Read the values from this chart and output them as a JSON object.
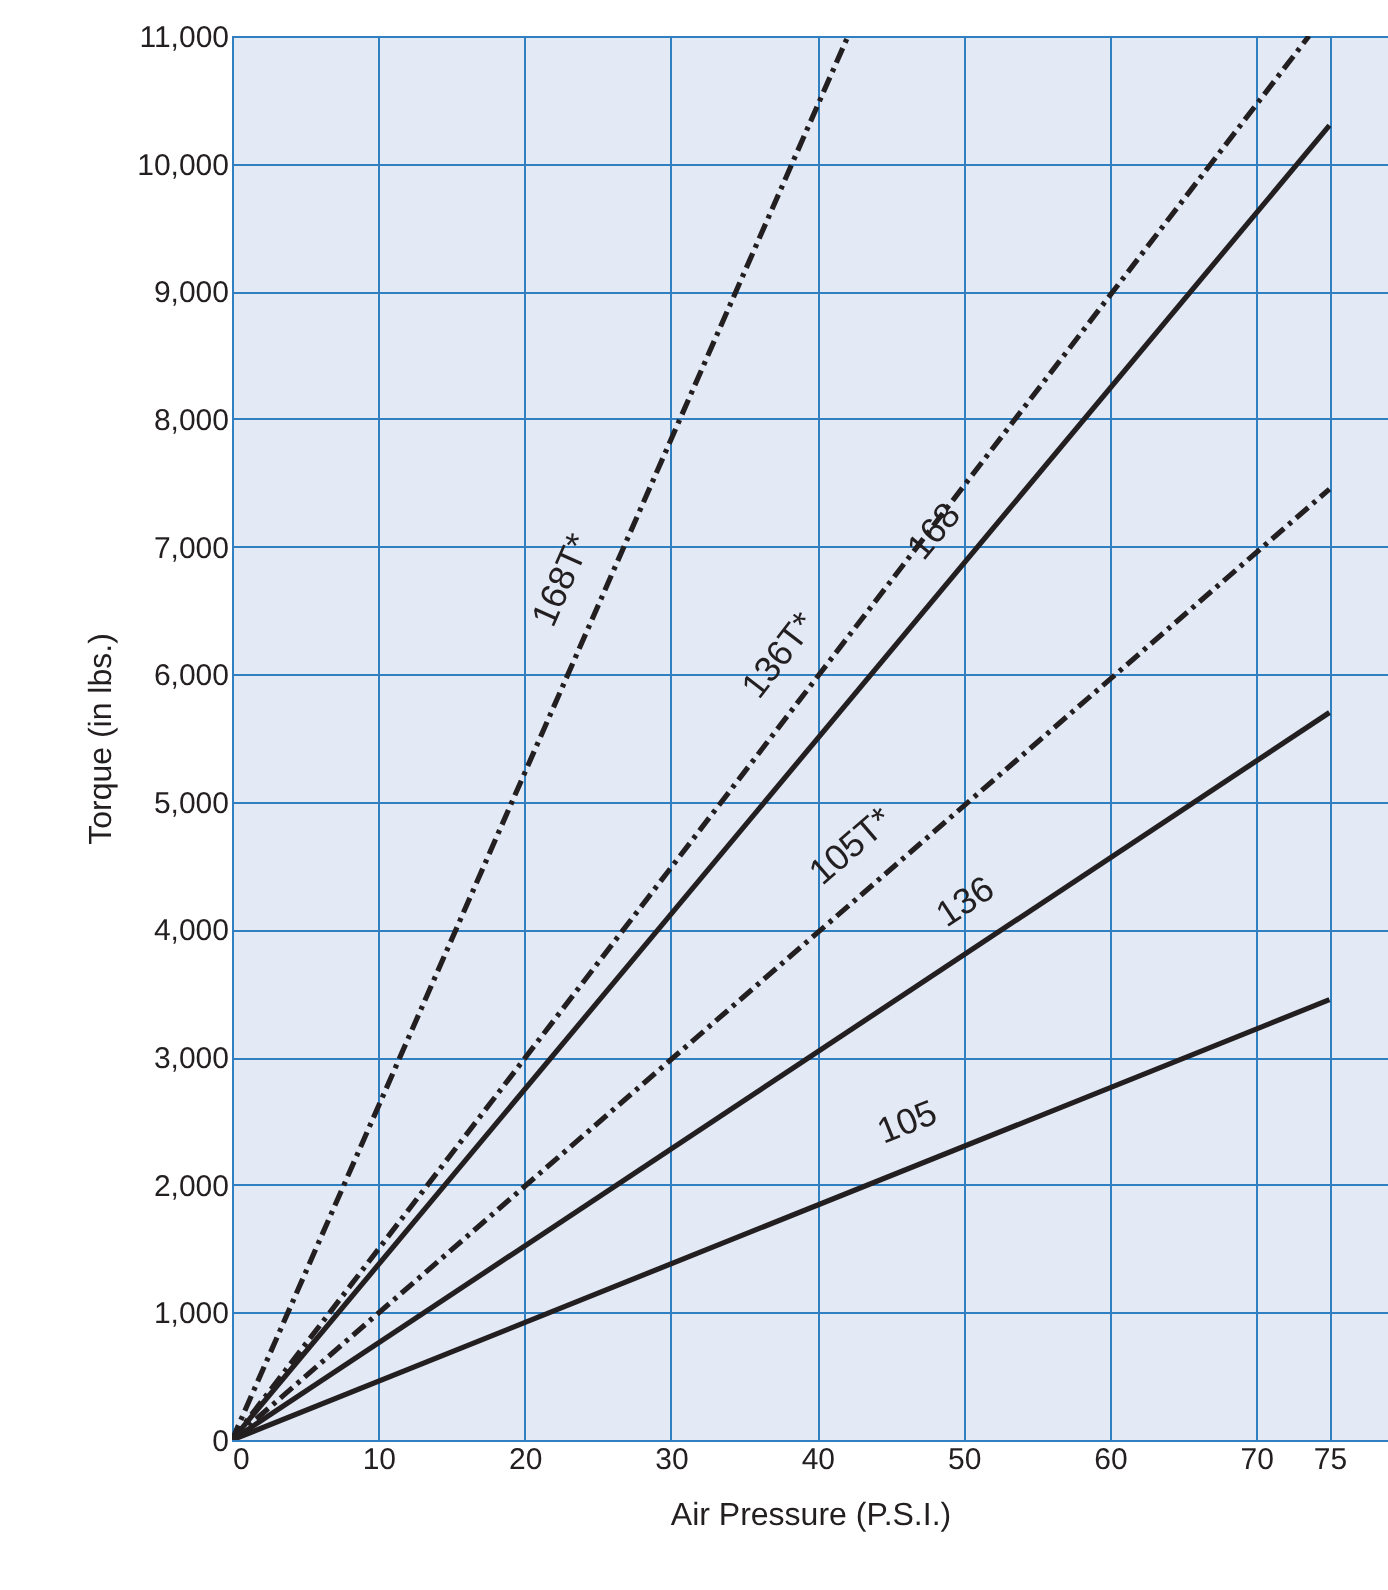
{
  "chart_data": {
    "type": "line",
    "xlabel": "Air Pressure (P.S.I.)",
    "ylabel": "Torque (in lbs.)",
    "xlim": [
      0,
      79
    ],
    "xticks": [
      0,
      10,
      20,
      30,
      40,
      50,
      60,
      70,
      75
    ],
    "ylim": [
      0,
      11000
    ],
    "yticks": [
      0,
      {
        "value": 1000,
        "label": "1,000"
      },
      {
        "value": 2000,
        "label": "2,000"
      },
      {
        "value": 3000,
        "label": "3,000"
      },
      {
        "value": 4000,
        "label": "4,000"
      },
      {
        "value": 5000,
        "label": "5,000"
      },
      {
        "value": 6000,
        "label": "6,000"
      },
      {
        "value": 7000,
        "label": "7,000"
      },
      {
        "value": 8000,
        "label": "8,000"
      },
      {
        "value": 9000,
        "label": "9,000"
      },
      {
        "value": 10000,
        "label": "10,000"
      },
      {
        "value": 11000,
        "label": "11,000"
      }
    ],
    "grid": true,
    "marker": "none",
    "series": [
      {
        "name": "168T*",
        "color": "#231f20",
        "line_style": "dashed",
        "x": [
          0,
          42.1
        ],
        "values": [
          0,
          11000
        ]
      },
      {
        "name": "136T*",
        "color": "#231f20",
        "line_style": "dashed",
        "x": [
          0,
          73.6
        ],
        "values": [
          0,
          11000
        ]
      },
      {
        "name": "168",
        "color": "#231f20",
        "line_style": "solid",
        "x": [
          0,
          75
        ],
        "values": [
          0,
          10300
        ]
      },
      {
        "name": "105T*",
        "color": "#231f20",
        "line_style": "dashed",
        "x": [
          0,
          75
        ],
        "values": [
          0,
          7450
        ]
      },
      {
        "name": "136",
        "color": "#231f20",
        "line_style": "solid",
        "x": [
          0,
          75
        ],
        "values": [
          0,
          5700
        ]
      },
      {
        "name": "105",
        "color": "#231f20",
        "line_style": "solid",
        "x": [
          0,
          75
        ],
        "values": [
          0,
          3450
        ]
      }
    ]
  }
}
